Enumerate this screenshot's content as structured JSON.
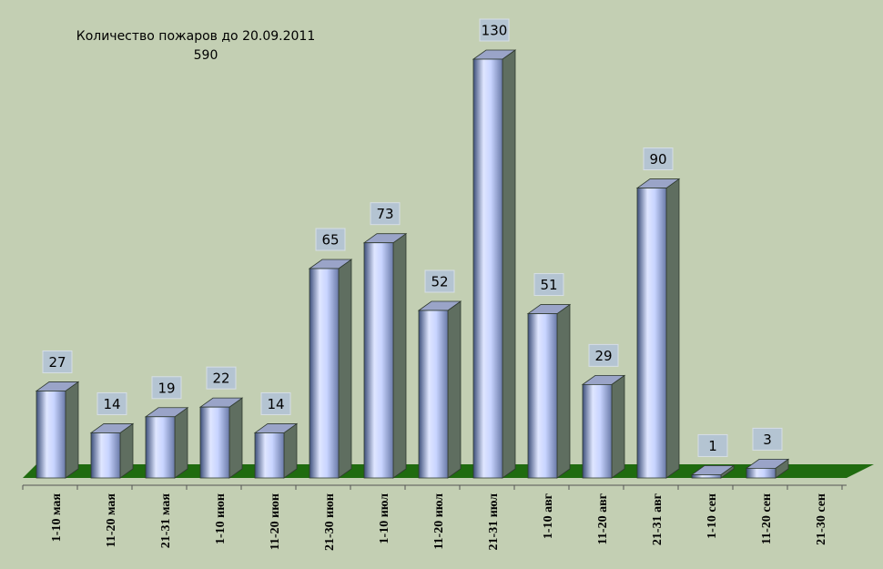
{
  "chart_data": {
    "type": "bar3d",
    "title": "Количество пожаров до 20.09.2011",
    "subtitle": "590",
    "categories": [
      "1-10   мая",
      "11-20 мая",
      "21-31 мая",
      "1-10   июн",
      "11-20 июн",
      "21-30 июн",
      "1-10  июл",
      "11-20 июл",
      "21-31 июл",
      "1-10     авг",
      "11-20  авг",
      "21-31   авг",
      "1-10   сен",
      "11-20 сен",
      "21-30 сен"
    ],
    "values": [
      27,
      14,
      19,
      22,
      14,
      65,
      73,
      52,
      130,
      51,
      29,
      90,
      1,
      3,
      null
    ],
    "color": "#c8d4ff",
    "floor_color": "#1f6b0f"
  }
}
